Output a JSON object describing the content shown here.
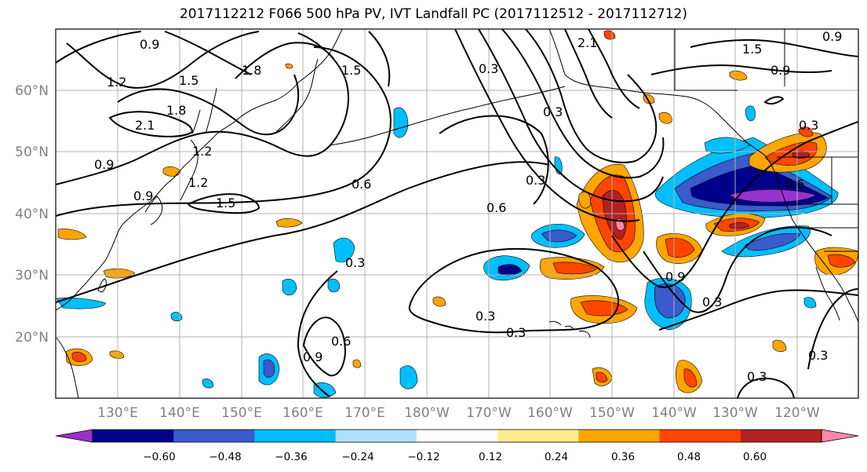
{
  "title": "2017112212 F066 500 hPa PV, IVT Landfall PC (2017112512 - 2017112712)",
  "map": {
    "lat_labels": [
      "60°N",
      "50°N",
      "40°N",
      "30°N",
      "20°N"
    ],
    "lon_labels": [
      "130°E",
      "140°E",
      "150°E",
      "160°E",
      "170°E",
      "180°W",
      "170°W",
      "160°W",
      "150°W",
      "140°W",
      "130°W",
      "120°W"
    ],
    "grid": true,
    "lat_range": [
      10,
      70
    ],
    "lon_range": [
      "120°E",
      "110°W"
    ]
  },
  "contour_labels": [
    {
      "text": "0.9"
    },
    {
      "text": "1.2"
    },
    {
      "text": "1.5"
    },
    {
      "text": "1.8"
    },
    {
      "text": "1.5"
    },
    {
      "text": "2.1"
    },
    {
      "text": "1.8"
    },
    {
      "text": "0.9"
    },
    {
      "text": "1.2"
    },
    {
      "text": "1.2"
    },
    {
      "text": "0.9"
    },
    {
      "text": "1.5"
    },
    {
      "text": "0.6"
    },
    {
      "text": "0.3"
    },
    {
      "text": "0.3"
    },
    {
      "text": "0.6"
    },
    {
      "text": "0.3"
    },
    {
      "text": "0.6"
    },
    {
      "text": "0.9"
    },
    {
      "text": "0.3"
    },
    {
      "text": "0.3"
    },
    {
      "text": "2.1"
    },
    {
      "text": "0.3"
    },
    {
      "text": "1.5"
    },
    {
      "text": "0.9"
    },
    {
      "text": "0.9"
    },
    {
      "text": "0.3"
    },
    {
      "text": "0.9"
    },
    {
      "text": "0.3"
    },
    {
      "text": "0.3"
    },
    {
      "text": "0.3"
    },
    {
      "text": "0.6"
    }
  ],
  "colorbar": {
    "ticks": [
      "−0.60",
      "−0.48",
      "−0.36",
      "−0.24",
      "−0.12",
      "0.12",
      "0.24",
      "0.36",
      "0.48",
      "0.60"
    ],
    "colors": [
      "#9932cc",
      "#00008b",
      "#3a5bcc",
      "#00bfff",
      "#b0e0ff",
      "#ffffff",
      "#ffec8b",
      "#ffa500",
      "#ff4500",
      "#b22222",
      "#ff88aa"
    ]
  },
  "colors": {
    "coast": "#000000",
    "grid": "#b0b0b0",
    "contour": "#000000"
  }
}
